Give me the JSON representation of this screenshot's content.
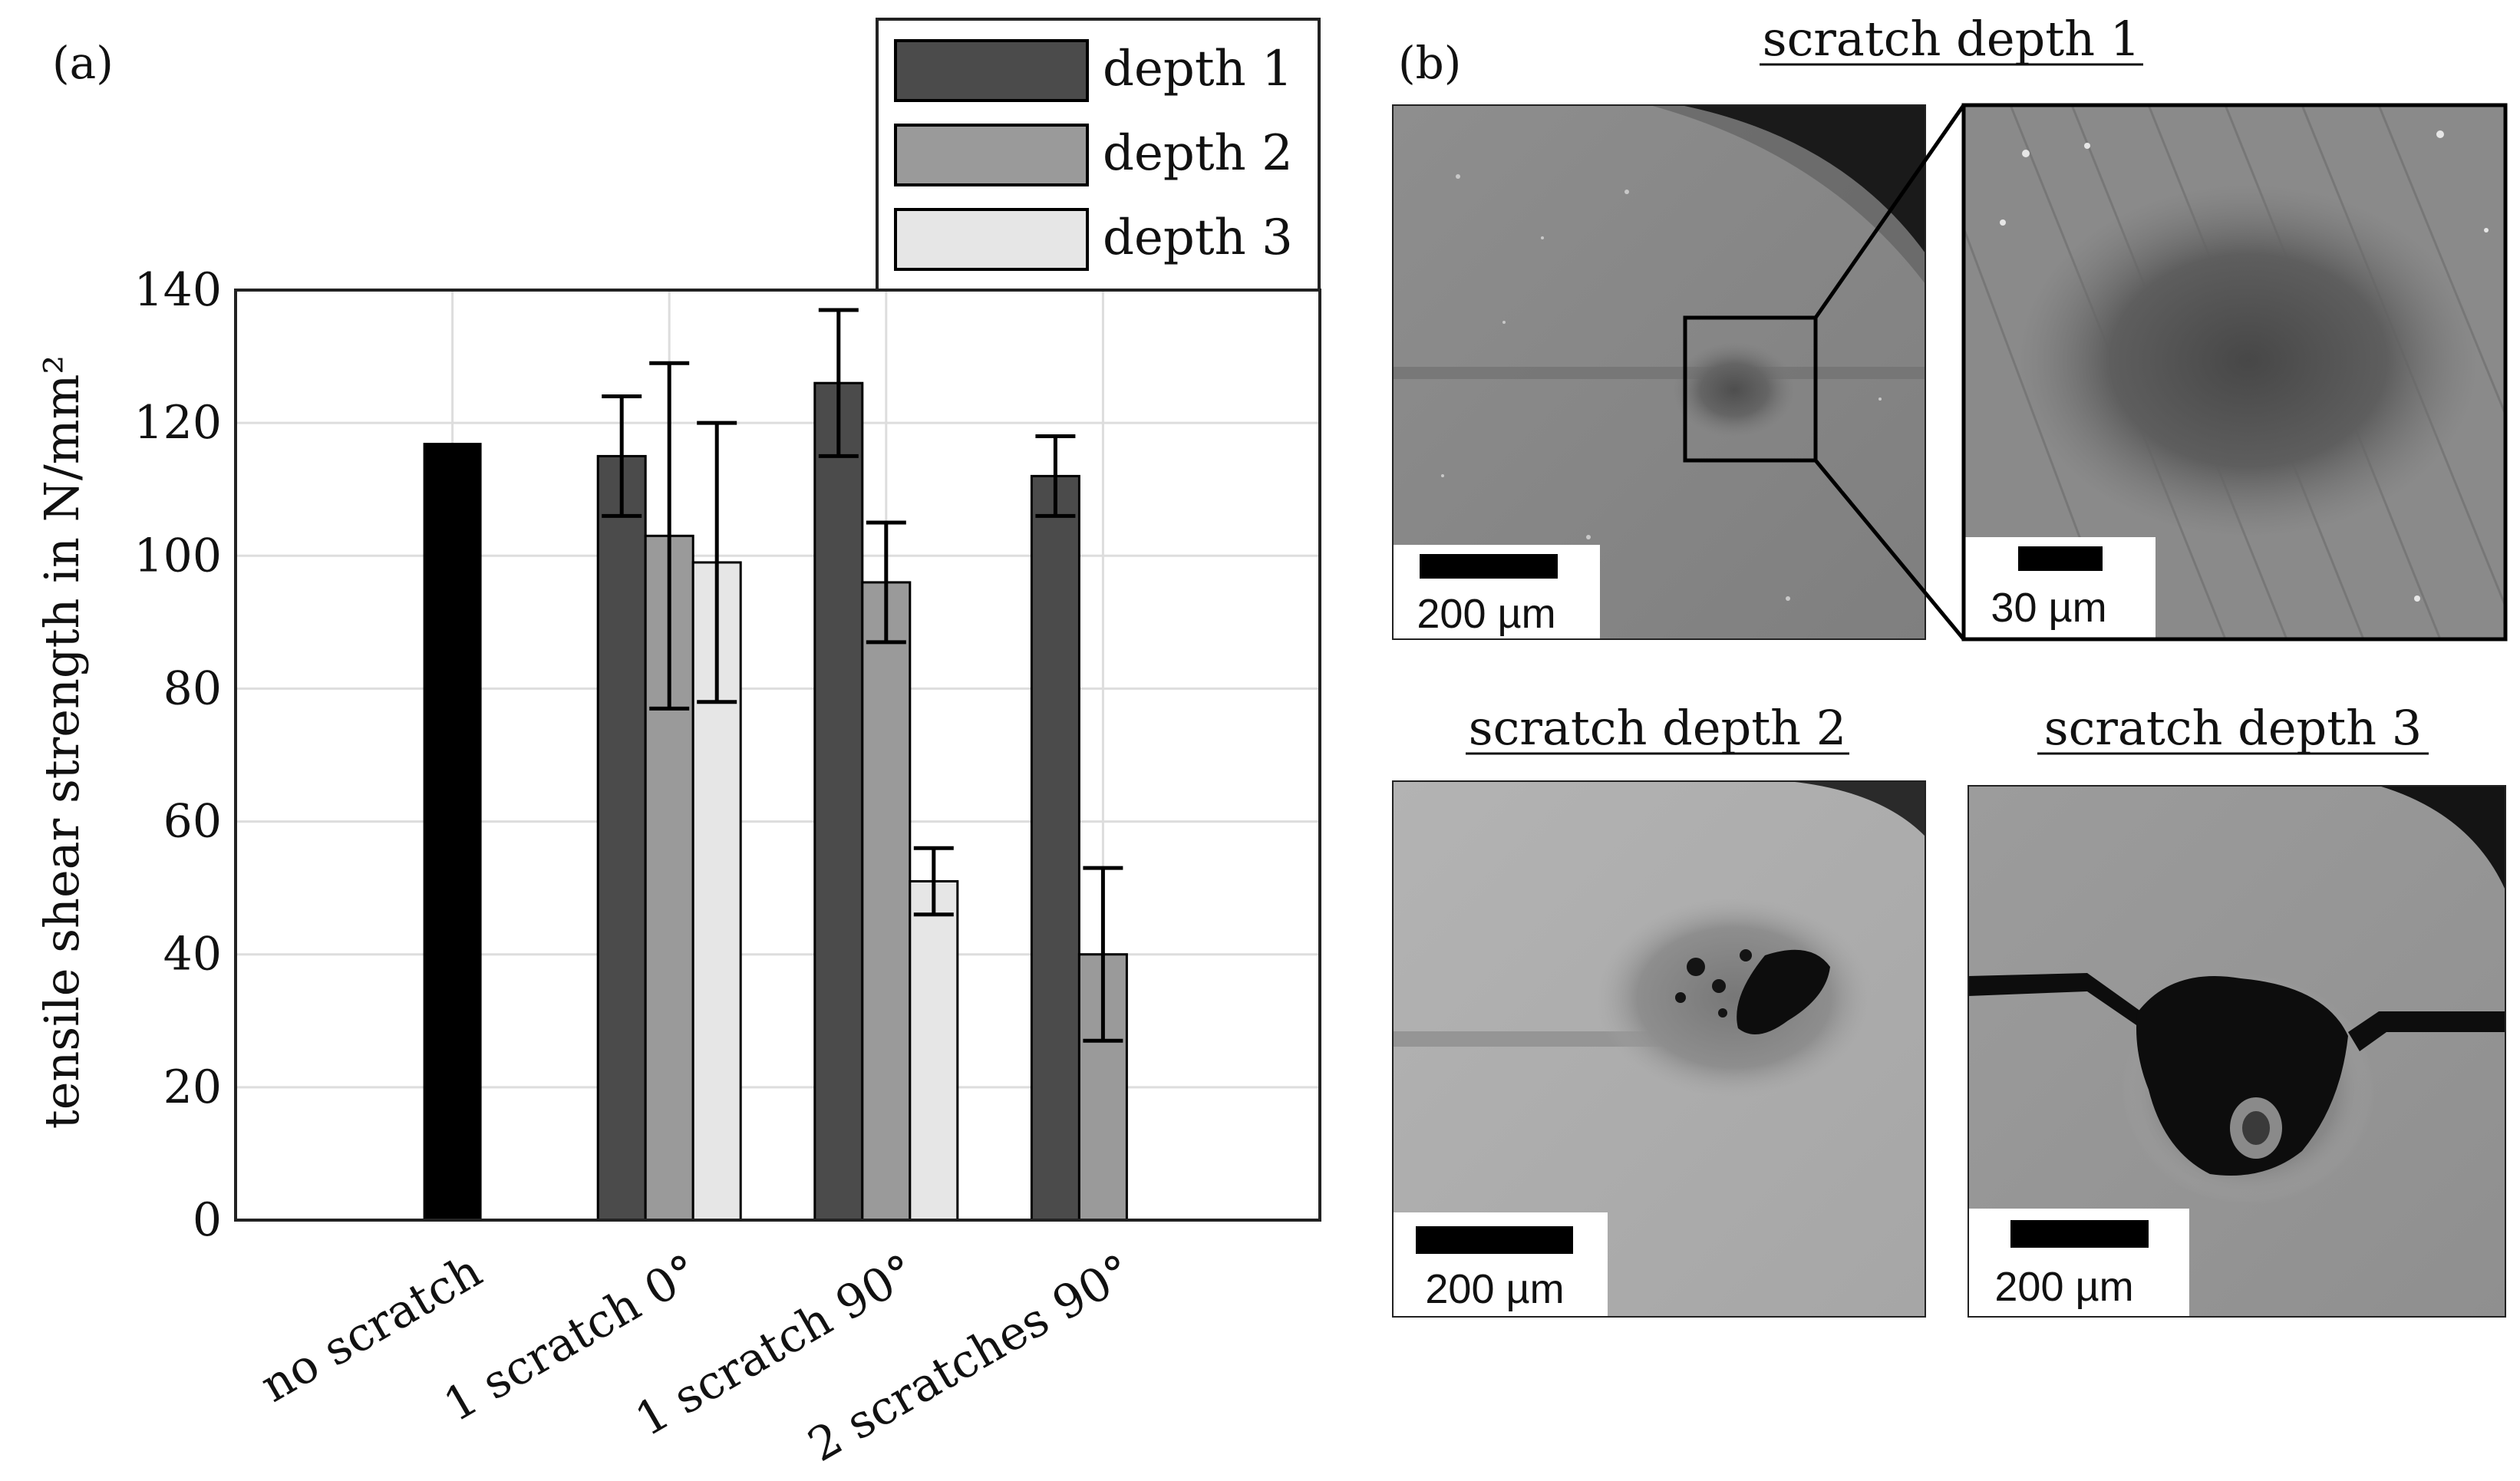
{
  "panel_a": {
    "label": "(a)",
    "chart_data": {
      "type": "bar",
      "title": "",
      "xlabel": "",
      "ylabel": "tensile shear strength in N/mm²",
      "categories": [
        "no scratch",
        "1 scratch 0°",
        "1 scratch 90°",
        "2 scratches 90°"
      ],
      "yticks": [
        "0",
        "20",
        "40",
        "60",
        "80",
        "100",
        "120",
        "140"
      ],
      "ylim": [
        0,
        140
      ],
      "grid": true,
      "legend_position": "top-right",
      "reference": {
        "category": "no scratch",
        "value": 117,
        "color": "#000000"
      },
      "series": [
        {
          "name": "depth 1",
          "color": "#4b4b4b",
          "values": [
            null,
            115,
            126,
            112
          ],
          "errors": [
            null,
            9,
            11,
            6
          ]
        },
        {
          "name": "depth 2",
          "color": "#9a9a9a",
          "values": [
            null,
            103,
            96,
            40
          ],
          "errors": [
            null,
            26,
            9,
            13
          ]
        },
        {
          "name": "depth 3",
          "color": "#e6e6e6",
          "values": [
            null,
            99,
            51,
            0
          ],
          "errors": [
            null,
            21,
            5,
            null
          ]
        }
      ]
    }
  },
  "panel_b": {
    "label": "(b)",
    "titles": {
      "depth1": "scratch depth 1",
      "depth2": "scratch depth 2",
      "depth3": "scratch depth 3"
    },
    "scale_bars": {
      "depth1_overview": "200 µm",
      "depth1_zoom": "30 µm",
      "depth2": "200 µm",
      "depth3": "200 µm"
    }
  },
  "colors": {
    "axis": "#222222",
    "grid": "#dddddd",
    "reference_bar": "#000000",
    "micrograph_background": "#8a8a8a",
    "micrograph_defect": "#0d0d0d"
  }
}
